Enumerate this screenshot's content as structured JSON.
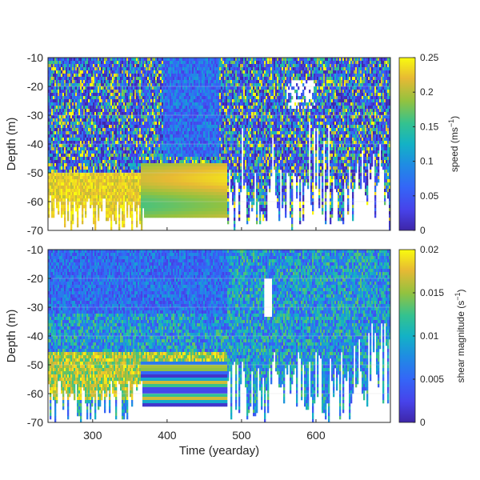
{
  "chart_data": [
    {
      "type": "heatmap",
      "panel": "top",
      "variable": "speed",
      "units": "ms⁻¹",
      "colorbar_label": "speed (ms⁻¹)",
      "colorbar_label_pre": "speed (ms",
      "colorbar_label_sup": "−1",
      "colorbar_label_post": ")",
      "colorbar_range": [
        0,
        0.25
      ],
      "colorbar_ticks": [
        0,
        0.05,
        0.1,
        0.15,
        0.2,
        0.25
      ],
      "colorbar_tick_labels": [
        "0",
        "0.05",
        "0.1",
        "0.15",
        "0.2",
        "0.25"
      ],
      "colormap": "parula",
      "xlabel": "",
      "ylabel": "Depth (m)",
      "xlim": [
        240,
        700
      ],
      "ylim": [
        -70,
        -10
      ],
      "yticks": [
        -70,
        -60,
        -50,
        -40,
        -30,
        -20,
        -10
      ],
      "ytick_labels": [
        "-70",
        "-60",
        "-50",
        "-40",
        "-30",
        "-20",
        "-10"
      ],
      "grid": true,
      "regions": [
        {
          "description": "high speed yellow band near bottom",
          "x": [
            240,
            370
          ],
          "depth": [
            -62,
            -50
          ],
          "level": 0.24
        },
        {
          "description": "low speed dark band",
          "x": [
            400,
            470
          ],
          "depth": [
            -45,
            -10
          ],
          "level": 0.04
        },
        {
          "description": "smooth interpolated gap fill",
          "x": [
            365,
            480
          ],
          "depth": [
            -66,
            -47
          ],
          "level": 0.2
        }
      ]
    },
    {
      "type": "heatmap",
      "panel": "bottom",
      "variable": "shear magnitude",
      "units": "s⁻¹",
      "colorbar_label": "shear magnitude (s⁻¹)",
      "colorbar_label_pre": "shear magnitude (s",
      "colorbar_label_sup": "−1",
      "colorbar_label_post": ")",
      "colorbar_range": [
        0,
        0.02
      ],
      "colorbar_ticks": [
        0,
        0.005,
        0.01,
        0.015,
        0.02
      ],
      "colorbar_tick_labels": [
        "0",
        "0.005",
        "0.01",
        "0.015",
        "0.02"
      ],
      "colormap": "parula",
      "xlabel": "Time (yearday)",
      "ylabel": "Depth (m)",
      "xlim": [
        240,
        700
      ],
      "ylim": [
        -70,
        -10
      ],
      "xticks": [
        300,
        400,
        500,
        600
      ],
      "xtick_labels": [
        "300",
        "400",
        "500",
        "600"
      ],
      "yticks": [
        -70,
        -60,
        -50,
        -40,
        -30,
        -20,
        -10
      ],
      "ytick_labels": [
        "-70",
        "-60",
        "-50",
        "-40",
        "-30",
        "-20",
        "-10"
      ],
      "grid": true,
      "regions": [
        {
          "description": "low shear near surface",
          "x": [
            240,
            480
          ],
          "depth": [
            -30,
            -15
          ],
          "level": 0.004
        },
        {
          "description": "high shear band near bottom",
          "x": [
            240,
            480
          ],
          "depth": [
            -60,
            -45
          ],
          "level": 0.017
        },
        {
          "description": "smooth interpolated gap fill",
          "x": [
            365,
            480
          ],
          "depth": [
            -64,
            -49
          ],
          "level": 0.012
        }
      ]
    }
  ]
}
